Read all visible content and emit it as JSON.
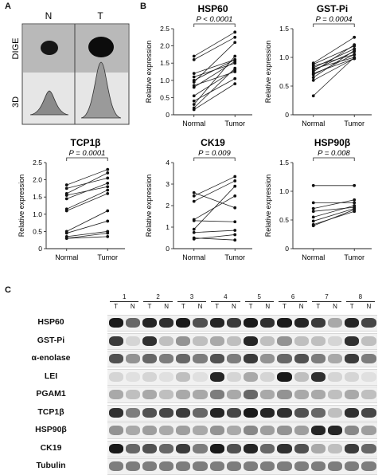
{
  "panels": {
    "a": {
      "letter": "A",
      "col_normal": "N",
      "col_tumor": "T",
      "row_dige": "DIGE",
      "row_3d": "3D"
    },
    "b": {
      "letter": "B"
    },
    "c": {
      "letter": "C"
    }
  },
  "chart_data": [
    {
      "type": "line",
      "title": "HSP60",
      "pvalue": "P < 0.0001",
      "ylabel": "Relative expression",
      "categories": [
        "Normal",
        "Tumor"
      ],
      "ylim": [
        0,
        2.5
      ],
      "yticks": [
        0,
        0.5,
        1.0,
        1.5,
        2.0,
        2.5
      ],
      "ytick_labels": [
        "0",
        "0.5",
        "1.0",
        "1.5",
        "2.0",
        "2.5"
      ],
      "pairs": [
        [
          1.7,
          2.4
        ],
        [
          1.6,
          2.25
        ],
        [
          1.2,
          1.6
        ],
        [
          1.1,
          1.5
        ],
        [
          1.0,
          1.6
        ],
        [
          0.95,
          2.1
        ],
        [
          0.85,
          1.25
        ],
        [
          0.8,
          1.55
        ],
        [
          0.55,
          1.3
        ],
        [
          0.4,
          1.05
        ],
        [
          0.3,
          1.7
        ],
        [
          0.2,
          1.35
        ],
        [
          0.15,
          0.9
        ]
      ]
    },
    {
      "type": "line",
      "title": "GST-Pi",
      "pvalue": "P = 0.0004",
      "ylabel": "Relative expression",
      "categories": [
        "Normal",
        "Tumor"
      ],
      "ylim": [
        0,
        1.5
      ],
      "yticks": [
        0,
        0.5,
        1.0,
        1.5
      ],
      "ytick_labels": [
        "0",
        "0.5",
        "1.0",
        "1.5"
      ],
      "pairs": [
        [
          0.9,
          1.35
        ],
        [
          0.88,
          1.2
        ],
        [
          0.85,
          1.05
        ],
        [
          0.82,
          1.15
        ],
        [
          0.8,
          1.0
        ],
        [
          0.78,
          1.1
        ],
        [
          0.75,
          1.22
        ],
        [
          0.72,
          0.98
        ],
        [
          0.7,
          1.05
        ],
        [
          0.65,
          1.12
        ],
        [
          0.6,
          0.98
        ],
        [
          0.33,
          1.0
        ]
      ]
    },
    {
      "type": "line",
      "title": "TCP1β",
      "pvalue": "P = 0.0001",
      "ylabel": "Relative expression",
      "categories": [
        "Normal",
        "Tumor"
      ],
      "ylim": [
        0,
        2.5
      ],
      "yticks": [
        0,
        0.5,
        1.0,
        1.5,
        2.0,
        2.5
      ],
      "ytick_labels": [
        "0",
        "0.5",
        "1.0",
        "1.5",
        "2.0",
        "2.5"
      ],
      "pairs": [
        [
          1.85,
          2.3
        ],
        [
          1.75,
          2.05
        ],
        [
          1.6,
          2.2
        ],
        [
          1.55,
          1.8
        ],
        [
          1.45,
          1.9
        ],
        [
          1.15,
          1.7
        ],
        [
          1.1,
          1.6
        ],
        [
          0.5,
          1.1
        ],
        [
          0.45,
          0.8
        ],
        [
          0.35,
          0.5
        ],
        [
          0.3,
          0.45
        ],
        [
          0.3,
          0.35
        ]
      ]
    },
    {
      "type": "line",
      "title": "CK19",
      "pvalue": "P = 0.009",
      "ylabel": "Relative expression",
      "categories": [
        "Normal",
        "Tumor"
      ],
      "ylim": [
        0,
        4
      ],
      "yticks": [
        0,
        1,
        2,
        3,
        4
      ],
      "ytick_labels": [
        "0",
        "1",
        "2",
        "3",
        "4"
      ],
      "pairs": [
        [
          2.6,
          1.9
        ],
        [
          2.45,
          3.35
        ],
        [
          2.2,
          3.15
        ],
        [
          1.35,
          2.45
        ],
        [
          1.3,
          1.25
        ],
        [
          0.9,
          2.9
        ],
        [
          0.75,
          0.85
        ],
        [
          0.5,
          0.4
        ],
        [
          0.45,
          0.65
        ]
      ]
    },
    {
      "type": "line",
      "title": "HSP90β",
      "pvalue": "P = 0.008",
      "ylabel": "Relative expression",
      "categories": [
        "Normal",
        "Tumor"
      ],
      "ylim": [
        0,
        1.5
      ],
      "yticks": [
        0,
        0.5,
        1.0,
        1.5
      ],
      "ytick_labels": [
        "0",
        "0.5",
        "1.0",
        "1.5"
      ],
      "pairs": [
        [
          1.1,
          1.1
        ],
        [
          0.8,
          0.8
        ],
        [
          0.7,
          0.85
        ],
        [
          0.65,
          0.72
        ],
        [
          0.55,
          0.75
        ],
        [
          0.48,
          0.7
        ],
        [
          0.42,
          0.65
        ],
        [
          0.4,
          0.68
        ]
      ]
    }
  ],
  "blot": {
    "patients": [
      "1",
      "2",
      "3",
      "4",
      "5",
      "6",
      "7",
      "8"
    ],
    "lanes": [
      "T",
      "N",
      "T",
      "N",
      "T",
      "N",
      "T",
      "N",
      "T",
      "N",
      "T",
      "N",
      "T",
      "N",
      "T",
      "N"
    ],
    "rows": [
      {
        "label": "HSP60",
        "intensity": [
          0.95,
          0.6,
          0.9,
          0.85,
          0.95,
          0.7,
          0.9,
          0.8,
          0.95,
          0.85,
          0.95,
          0.9,
          0.8,
          0.3,
          0.9,
          0.75
        ]
      },
      {
        "label": "GST-Pi",
        "intensity": [
          0.8,
          0.1,
          0.85,
          0.2,
          0.4,
          0.2,
          0.3,
          0.2,
          0.9,
          0.2,
          0.4,
          0.2,
          0.2,
          0.1,
          0.85,
          0.2
        ]
      },
      {
        "label": "α-enolase",
        "intensity": [
          0.7,
          0.4,
          0.6,
          0.5,
          0.6,
          0.5,
          0.7,
          0.5,
          0.8,
          0.4,
          0.6,
          0.7,
          0.5,
          0.3,
          0.8,
          0.5
        ]
      },
      {
        "label": "LEI",
        "intensity": [
          0.1,
          0.05,
          0.1,
          0.05,
          0.2,
          0.05,
          0.9,
          0.1,
          0.3,
          0.1,
          0.95,
          0.2,
          0.85,
          0.1,
          0.1,
          0.05
        ]
      },
      {
        "label": "PGAM1",
        "intensity": [
          0.3,
          0.2,
          0.3,
          0.2,
          0.3,
          0.3,
          0.5,
          0.3,
          0.6,
          0.3,
          0.4,
          0.3,
          0.3,
          0.2,
          0.3,
          0.2
        ]
      },
      {
        "label": "TCP1β",
        "intensity": [
          0.85,
          0.5,
          0.7,
          0.75,
          0.8,
          0.6,
          0.9,
          0.75,
          0.95,
          0.9,
          0.85,
          0.7,
          0.6,
          0.2,
          0.85,
          0.75
        ]
      },
      {
        "label": "HSP90β",
        "intensity": [
          0.4,
          0.3,
          0.35,
          0.3,
          0.35,
          0.3,
          0.4,
          0.3,
          0.45,
          0.35,
          0.4,
          0.35,
          0.9,
          0.9,
          0.45,
          0.35
        ]
      },
      {
        "label": "CK19",
        "intensity": [
          0.95,
          0.6,
          0.7,
          0.6,
          0.8,
          0.5,
          0.95,
          0.7,
          0.9,
          0.6,
          0.85,
          0.7,
          0.3,
          0.2,
          0.8,
          0.6
        ]
      },
      {
        "label": "Tubulin",
        "intensity": [
          0.5,
          0.5,
          0.5,
          0.5,
          0.5,
          0.5,
          0.5,
          0.5,
          0.5,
          0.5,
          0.5,
          0.5,
          0.5,
          0.5,
          0.5,
          0.5
        ]
      }
    ]
  }
}
